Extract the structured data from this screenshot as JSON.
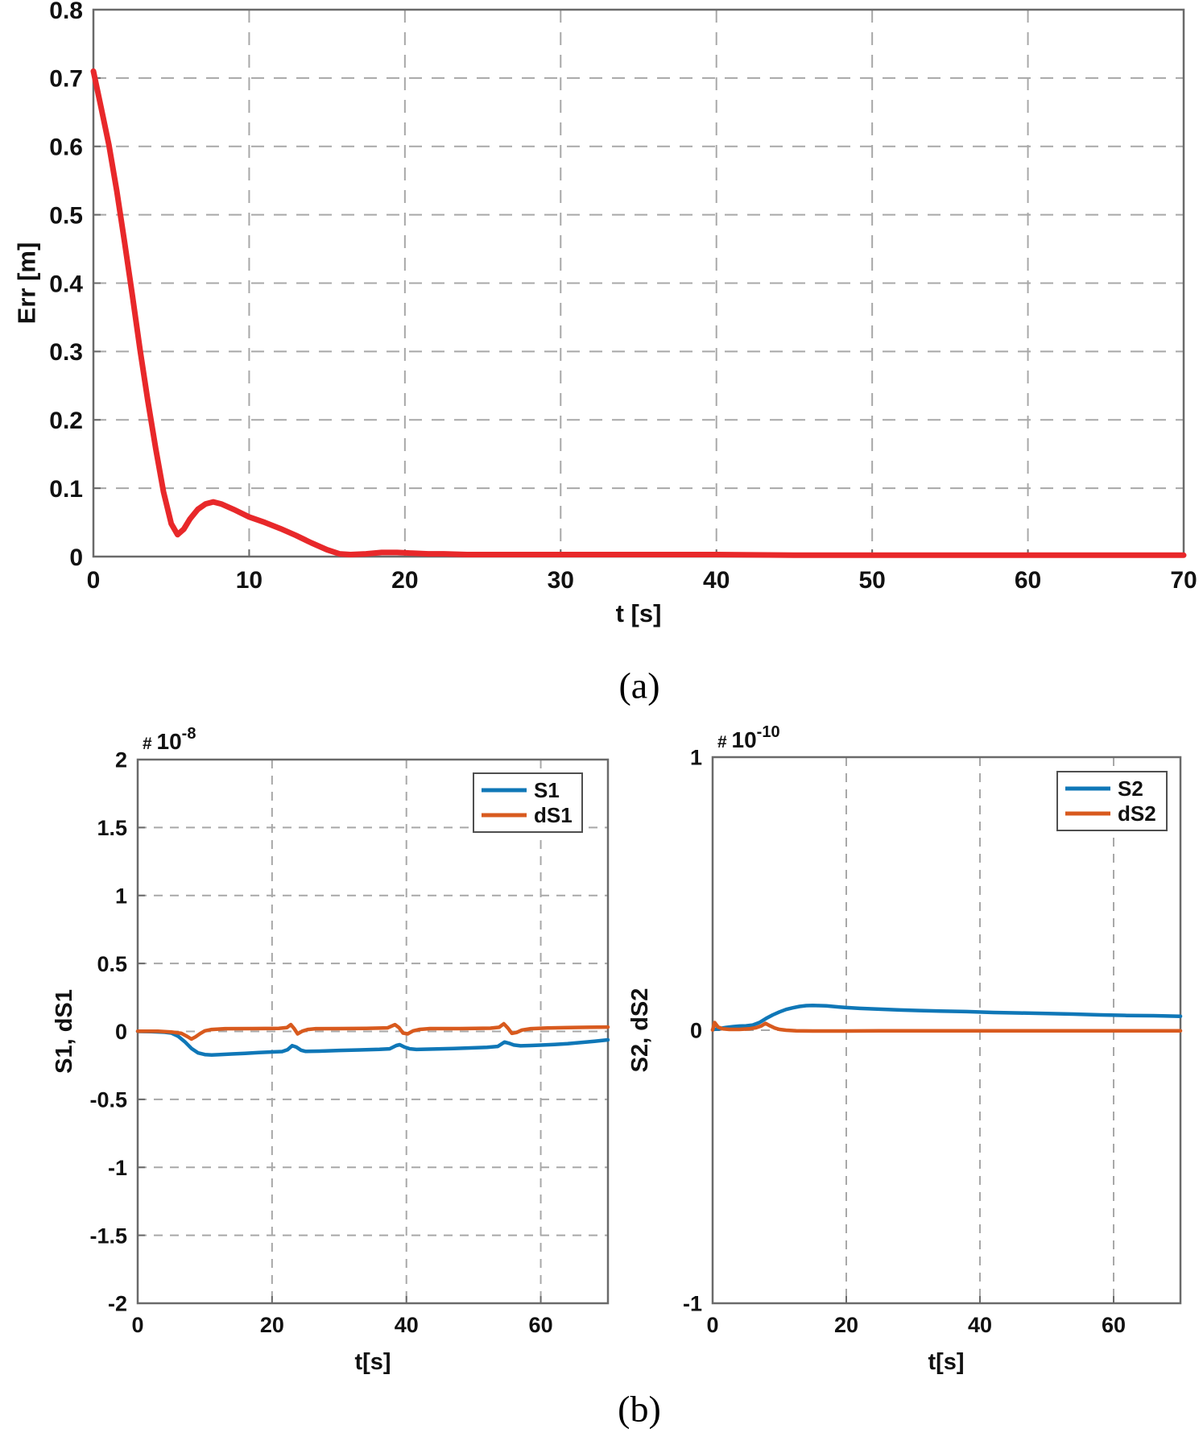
{
  "figure": {
    "panel_a_label": "(a)",
    "panel_b_label": "(b)"
  },
  "colors": {
    "red": "#e8282a",
    "blue": "#0f77b7",
    "orange": "#d85a1e",
    "axis": "#6a6a6a",
    "grid": "#a8a8a8",
    "text": "#111111",
    "legend_border": "#4f4f4f",
    "background": "#ffffff"
  },
  "chart_data": [
    {
      "id": "err",
      "type": "line",
      "title": "",
      "xlabel": "t [s]",
      "ylabel": "Err [m]",
      "xlim": [
        0,
        70
      ],
      "ylim": [
        0,
        0.8
      ],
      "grid": true,
      "scale_label": null,
      "legend": null,
      "xticks": {
        "values": [
          0,
          10,
          20,
          30,
          40,
          50,
          60,
          70
        ],
        "labels": [
          "0",
          "10",
          "20",
          "30",
          "40",
          "50",
          "60",
          "70"
        ]
      },
      "yticks": {
        "values": [
          0,
          0.1,
          0.2,
          0.3,
          0.4,
          0.5,
          0.6,
          0.7,
          0.8
        ],
        "labels": [
          "0",
          "0.1",
          "0.2",
          "0.3",
          "0.4",
          "0.5",
          "0.6",
          "0.7",
          "0.8"
        ]
      },
      "series": [
        {
          "name": "Err",
          "color": "red",
          "points": [
            [
              0,
              0.71
            ],
            [
              0.5,
              0.656
            ],
            [
              1,
              0.602
            ],
            [
              1.5,
              0.535
            ],
            [
              2,
              0.46
            ],
            [
              2.5,
              0.382
            ],
            [
              3,
              0.302
            ],
            [
              3.5,
              0.227
            ],
            [
              4,
              0.158
            ],
            [
              4.5,
              0.095
            ],
            [
              5,
              0.048
            ],
            [
              5.4,
              0.032
            ],
            [
              5.8,
              0.04
            ],
            [
              6.2,
              0.055
            ],
            [
              6.7,
              0.069
            ],
            [
              7.2,
              0.077
            ],
            [
              7.7,
              0.08
            ],
            [
              8.2,
              0.077
            ],
            [
              9,
              0.069
            ],
            [
              10,
              0.058
            ],
            [
              11,
              0.05
            ],
            [
              12,
              0.041
            ],
            [
              13,
              0.031
            ],
            [
              14,
              0.02
            ],
            [
              15,
              0.01
            ],
            [
              15.8,
              0.004
            ],
            [
              16.5,
              0.003
            ],
            [
              17.5,
              0.004
            ],
            [
              18.5,
              0.006
            ],
            [
              19.5,
              0.006
            ],
            [
              20.5,
              0.005
            ],
            [
              21.5,
              0.004
            ],
            [
              22.5,
              0.004
            ],
            [
              24,
              0.003
            ],
            [
              26,
              0.003
            ],
            [
              28,
              0.003
            ],
            [
              32,
              0.003
            ],
            [
              36,
              0.003
            ],
            [
              40,
              0.003
            ],
            [
              45,
              0.002
            ],
            [
              50,
              0.002
            ],
            [
              55,
              0.002
            ],
            [
              60,
              0.002
            ],
            [
              65,
              0.002
            ],
            [
              70,
              0.002
            ]
          ]
        }
      ]
    },
    {
      "id": "s1",
      "type": "line",
      "title": "",
      "xlabel": "t[s]",
      "ylabel": "S1, dS1",
      "xlim": [
        0,
        70
      ],
      "ylim": [
        -2,
        2
      ],
      "grid": true,
      "scale_label": {
        "prefix": "#",
        "base": "10",
        "exponent": "-8"
      },
      "legend": {
        "entries": [
          {
            "label": "S1",
            "color": "blue"
          },
          {
            "label": "dS1",
            "color": "orange"
          }
        ]
      },
      "xticks": {
        "values": [
          0,
          20,
          40,
          60
        ],
        "labels": [
          "0",
          "20",
          "40",
          "60"
        ]
      },
      "yticks": {
        "values": [
          -2,
          -1.5,
          -1,
          -0.5,
          0,
          0.5,
          1,
          1.5,
          2
        ],
        "labels": [
          "-2",
          "-1.5",
          "-1",
          "-0.5",
          "0",
          "0.5",
          "1",
          "1.5",
          "2"
        ]
      },
      "series": [
        {
          "name": "S1",
          "color": "blue",
          "points": [
            [
              0,
              0
            ],
            [
              2,
              -0.002
            ],
            [
              4,
              -0.006
            ],
            [
              5,
              -0.012
            ],
            [
              6,
              -0.035
            ],
            [
              7,
              -0.075
            ],
            [
              8,
              -0.125
            ],
            [
              9,
              -0.158
            ],
            [
              10,
              -0.17
            ],
            [
              11,
              -0.173
            ],
            [
              12,
              -0.171
            ],
            [
              14,
              -0.166
            ],
            [
              16,
              -0.161
            ],
            [
              18,
              -0.156
            ],
            [
              20,
              -0.151
            ],
            [
              21.5,
              -0.148
            ],
            [
              22.3,
              -0.135
            ],
            [
              23,
              -0.105
            ],
            [
              23.6,
              -0.115
            ],
            [
              24.3,
              -0.138
            ],
            [
              25,
              -0.147
            ],
            [
              27,
              -0.145
            ],
            [
              30,
              -0.14
            ],
            [
              33,
              -0.136
            ],
            [
              36,
              -0.132
            ],
            [
              37.5,
              -0.128
            ],
            [
              38.5,
              -0.104
            ],
            [
              39,
              -0.098
            ],
            [
              39.7,
              -0.115
            ],
            [
              40.5,
              -0.128
            ],
            [
              41.5,
              -0.133
            ],
            [
              44,
              -0.13
            ],
            [
              47,
              -0.126
            ],
            [
              50,
              -0.121
            ],
            [
              52,
              -0.117
            ],
            [
              53.6,
              -0.11
            ],
            [
              54.6,
              -0.078
            ],
            [
              55.3,
              -0.088
            ],
            [
              56,
              -0.1
            ],
            [
              57,
              -0.106
            ],
            [
              58.5,
              -0.104
            ],
            [
              60,
              -0.101
            ],
            [
              62,
              -0.096
            ],
            [
              64,
              -0.09
            ],
            [
              66,
              -0.082
            ],
            [
              68,
              -0.072
            ],
            [
              70,
              -0.062
            ]
          ]
        },
        {
          "name": "dS1",
          "color": "orange",
          "points": [
            [
              0,
              0.002
            ],
            [
              3,
              0.001
            ],
            [
              5,
              -0.004
            ],
            [
              6.5,
              -0.014
            ],
            [
              7.4,
              -0.038
            ],
            [
              8,
              -0.056
            ],
            [
              8.6,
              -0.04
            ],
            [
              9.3,
              -0.016
            ],
            [
              10,
              0.004
            ],
            [
              11,
              0.014
            ],
            [
              13,
              0.02
            ],
            [
              17,
              0.021
            ],
            [
              21,
              0.022
            ],
            [
              22.2,
              0.028
            ],
            [
              22.8,
              0.05
            ],
            [
              23.3,
              0.02
            ],
            [
              23.8,
              -0.018
            ],
            [
              24.5,
              0.002
            ],
            [
              25.3,
              0.014
            ],
            [
              26.5,
              0.02
            ],
            [
              30,
              0.021
            ],
            [
              34,
              0.022
            ],
            [
              37.2,
              0.026
            ],
            [
              38.3,
              0.05
            ],
            [
              38.9,
              0.028
            ],
            [
              39.5,
              -0.012
            ],
            [
              40.2,
              -0.018
            ],
            [
              41,
              0.004
            ],
            [
              42,
              0.015
            ],
            [
              43.5,
              0.021
            ],
            [
              48,
              0.021
            ],
            [
              52.5,
              0.024
            ],
            [
              53.8,
              0.03
            ],
            [
              54.5,
              0.056
            ],
            [
              55.1,
              0.025
            ],
            [
              55.7,
              -0.014
            ],
            [
              56.4,
              -0.008
            ],
            [
              57.2,
              0.01
            ],
            [
              58.5,
              0.02
            ],
            [
              61,
              0.025
            ],
            [
              64,
              0.028
            ],
            [
              67,
              0.03
            ],
            [
              70,
              0.032
            ]
          ]
        }
      ]
    },
    {
      "id": "s2",
      "type": "line",
      "title": "",
      "xlabel": "t[s]",
      "ylabel": "S2, dS2",
      "xlim": [
        0,
        70
      ],
      "ylim": [
        -1,
        1
      ],
      "grid": true,
      "scale_label": {
        "prefix": "#",
        "base": "10",
        "exponent": "-10"
      },
      "legend": {
        "entries": [
          {
            "label": "S2",
            "color": "blue"
          },
          {
            "label": "dS2",
            "color": "orange"
          }
        ]
      },
      "xticks": {
        "values": [
          0,
          20,
          40,
          60
        ],
        "labels": [
          "0",
          "20",
          "40",
          "60"
        ]
      },
      "yticks": {
        "values": [
          -1,
          0,
          1
        ],
        "labels": [
          "-1",
          "0",
          "1"
        ]
      },
      "series": [
        {
          "name": "S2",
          "color": "blue",
          "points": [
            [
              0,
              0.002
            ],
            [
              1,
              0.006
            ],
            [
              2,
              0.01
            ],
            [
              3,
              0.013
            ],
            [
              4,
              0.015
            ],
            [
              5,
              0.016
            ],
            [
              6,
              0.019
            ],
            [
              7,
              0.028
            ],
            [
              8,
              0.043
            ],
            [
              9,
              0.056
            ],
            [
              10,
              0.067
            ],
            [
              11,
              0.076
            ],
            [
              12,
              0.082
            ],
            [
              13,
              0.087
            ],
            [
              14,
              0.09
            ],
            [
              15,
              0.091
            ],
            [
              16,
              0.09
            ],
            [
              17,
              0.089
            ],
            [
              18,
              0.087
            ],
            [
              19,
              0.085
            ],
            [
              20,
              0.083
            ],
            [
              22,
              0.08
            ],
            [
              25,
              0.077
            ],
            [
              28,
              0.074
            ],
            [
              31,
              0.072
            ],
            [
              34,
              0.07
            ],
            [
              38,
              0.068
            ],
            [
              42,
              0.065
            ],
            [
              46,
              0.063
            ],
            [
              50,
              0.061
            ],
            [
              54,
              0.059
            ],
            [
              58,
              0.056
            ],
            [
              62,
              0.054
            ],
            [
              66,
              0.053
            ],
            [
              70,
              0.051
            ]
          ]
        },
        {
          "name": "dS2",
          "color": "orange",
          "points": [
            [
              0,
              0.001
            ],
            [
              0.3,
              0.028
            ],
            [
              0.8,
              0.012
            ],
            [
              1.5,
              0.005
            ],
            [
              2.5,
              0.003
            ],
            [
              4,
              0.003
            ],
            [
              5.5,
              0.005
            ],
            [
              6.5,
              0.009
            ],
            [
              7.3,
              0.016
            ],
            [
              7.9,
              0.025
            ],
            [
              8.6,
              0.016
            ],
            [
              9.3,
              0.008
            ],
            [
              10,
              0.003
            ],
            [
              11,
              0
            ],
            [
              12.5,
              -0.002
            ],
            [
              15,
              -0.003
            ],
            [
              20,
              -0.003
            ],
            [
              25,
              -0.002
            ],
            [
              30,
              -0.002
            ],
            [
              40,
              -0.002
            ],
            [
              50,
              -0.002
            ],
            [
              60,
              -0.002
            ],
            [
              70,
              -0.002
            ]
          ]
        }
      ]
    }
  ]
}
